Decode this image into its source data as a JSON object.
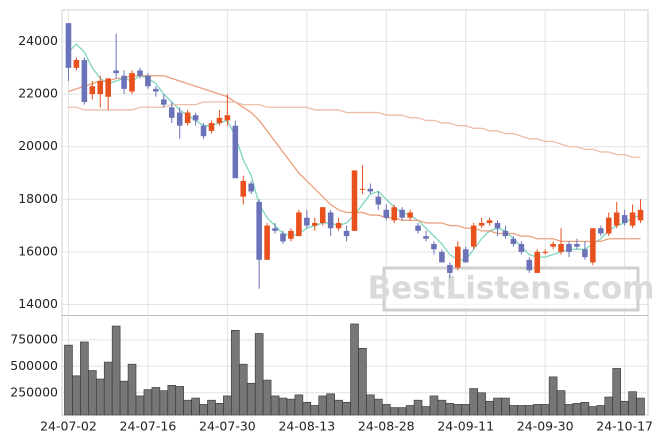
{
  "chart_data": [
    {
      "type": "candlestick",
      "open": [
        24700,
        23000,
        23300,
        22000,
        22000,
        21900,
        22900,
        22700,
        22100,
        22900,
        22700,
        22200,
        21800,
        21500,
        21300,
        20900,
        21200,
        20800,
        20600,
        20900,
        21000,
        20800,
        18100,
        18600,
        17900,
        15700,
        16900,
        16700,
        16500,
        16600,
        17300,
        17000,
        17100,
        17500,
        16900,
        16800,
        16800,
        18400,
        18400,
        18100,
        17600,
        17200,
        17600,
        17300,
        17000,
        16600,
        16300,
        16000,
        15500,
        15400,
        16100,
        16200,
        17000,
        17100,
        17100,
        16800,
        16500,
        16300,
        15700,
        15200,
        16000,
        16200,
        16000,
        16300,
        16300,
        16100,
        15600,
        16900,
        16700,
        17000,
        17400,
        17000,
        17200
      ],
      "high": [
        24700,
        23400,
        23400,
        22500,
        22700,
        22600,
        24300,
        22900,
        22900,
        23000,
        22800,
        22300,
        22000,
        21700,
        21500,
        21400,
        21300,
        20900,
        21000,
        21400,
        22000,
        21000,
        18900,
        18700,
        18000,
        17100,
        17100,
        16800,
        16900,
        17600,
        17600,
        17300,
        17700,
        17600,
        17300,
        17000,
        19100,
        19300,
        18600,
        18300,
        17800,
        17800,
        17700,
        17600,
        17100,
        16800,
        16400,
        16100,
        15600,
        16400,
        16200,
        17100,
        17300,
        17300,
        17200,
        17000,
        16600,
        16400,
        15800,
        16100,
        16100,
        16400,
        16900,
        16400,
        16500,
        16400,
        16900,
        17000,
        17500,
        17900,
        17600,
        17800,
        18000
      ],
      "low": [
        22500,
        22900,
        21600,
        21800,
        21500,
        21400,
        22600,
        22000,
        22000,
        22600,
        22200,
        21900,
        21500,
        20900,
        20300,
        20800,
        20800,
        20300,
        20500,
        20800,
        20800,
        18800,
        17800,
        18200,
        14600,
        15700,
        16700,
        16300,
        16400,
        16600,
        16900,
        16800,
        17000,
        16600,
        16800,
        16400,
        16800,
        18200,
        18200,
        17600,
        17200,
        17100,
        17200,
        17200,
        16700,
        16400,
        15900,
        15600,
        15000,
        15300,
        15600,
        16100,
        16900,
        17000,
        16600,
        16500,
        16200,
        15900,
        15200,
        15200,
        15900,
        16100,
        15900,
        15800,
        16100,
        15700,
        15500,
        16600,
        16600,
        16900,
        17000,
        16900,
        17100
      ],
      "close": [
        23000,
        23300,
        21700,
        22300,
        22500,
        22600,
        22800,
        22200,
        22800,
        22700,
        22300,
        22100,
        21600,
        21100,
        20800,
        21300,
        21000,
        20400,
        20900,
        21100,
        21200,
        18800,
        18700,
        18300,
        15700,
        17000,
        16800,
        16400,
        16800,
        17500,
        17000,
        17100,
        17700,
        16900,
        17100,
        16600,
        19100,
        18400,
        18300,
        17800,
        17300,
        17700,
        17300,
        17500,
        16800,
        16500,
        16100,
        15600,
        15200,
        16200,
        15600,
        17000,
        17100,
        17200,
        16900,
        16600,
        16300,
        16000,
        15300,
        16000,
        16000,
        16300,
        16300,
        16000,
        16200,
        15800,
        16900,
        16700,
        17300,
        17500,
        17100,
        17500,
        17600
      ],
      "up_color": "#e8501e",
      "down_color": "#6b72b8",
      "lines": [
        {
          "color": "#7fd6c0",
          "values": [
            23600,
            23900,
            23600,
            23000,
            22600,
            22400,
            22500,
            22600,
            22500,
            22700,
            22600,
            22400,
            22000,
            21700,
            21400,
            21200,
            21000,
            20800,
            20800,
            20900,
            21000,
            20400,
            19500,
            18900,
            17800,
            17300,
            17000,
            16700,
            16600,
            16700,
            16900,
            17000,
            17100,
            17100,
            17000,
            17100,
            17400,
            17800,
            18200,
            18300,
            18000,
            17700,
            17500,
            17400,
            17200,
            16900,
            16600,
            16300,
            15900,
            15700,
            15700,
            16100,
            16500,
            16800,
            16900,
            16800,
            16500,
            16200,
            15900,
            15800,
            15800,
            15900,
            16000,
            16100,
            16100,
            16100,
            16300,
            16500,
            16800,
            17000,
            17100,
            17300,
            17400
          ]
        },
        {
          "color": "#eaa07e",
          "values": [
            22100,
            22200,
            22300,
            22400,
            22500,
            22500,
            22600,
            22600,
            22700,
            22700,
            22700,
            22700,
            22700,
            22600,
            22500,
            22400,
            22300,
            22200,
            22100,
            22000,
            21900,
            21700,
            21500,
            21300,
            21000,
            20600,
            20200,
            19800,
            19400,
            19000,
            18700,
            18400,
            18100,
            17800,
            17600,
            17500,
            17500,
            17500,
            17400,
            17400,
            17300,
            17300,
            17200,
            17200,
            17200,
            17100,
            17100,
            17100,
            17000,
            17000,
            16900,
            16900,
            16800,
            16800,
            16700,
            16700,
            16700,
            16600,
            16600,
            16500,
            16500,
            16500,
            16400,
            16400,
            16400,
            16400,
            16400,
            16400,
            16500,
            16500,
            16500,
            16500,
            16500
          ]
        },
        {
          "color": "#ebbfa6",
          "values": [
            21500,
            21500,
            21400,
            21400,
            21400,
            21400,
            21400,
            21400,
            21400,
            21500,
            21500,
            21500,
            21500,
            21600,
            21600,
            21600,
            21600,
            21700,
            21700,
            21700,
            21700,
            21700,
            21600,
            21600,
            21600,
            21500,
            21500,
            21500,
            21500,
            21500,
            21500,
            21400,
            21400,
            21400,
            21400,
            21300,
            21300,
            21300,
            21300,
            21300,
            21200,
            21200,
            21200,
            21100,
            21100,
            21000,
            21000,
            20900,
            20900,
            20800,
            20800,
            20700,
            20700,
            20600,
            20600,
            20500,
            20500,
            20400,
            20300,
            20300,
            20200,
            20200,
            20100,
            20000,
            20000,
            19900,
            19900,
            19800,
            19800,
            19700,
            19700,
            19600,
            19600
          ]
        }
      ],
      "ylim": [
        13600,
        25200
      ],
      "yticks": [
        14000,
        16000,
        18000,
        20000,
        22000,
        24000
      ],
      "grid": true,
      "watermark": "BestListens.com"
    },
    {
      "type": "bar",
      "categories": [
        "24-07-02",
        null,
        null,
        null,
        null,
        null,
        null,
        null,
        null,
        null,
        "24-07-16",
        null,
        null,
        null,
        null,
        null,
        null,
        null,
        null,
        null,
        "24-07-30",
        null,
        null,
        null,
        null,
        null,
        null,
        null,
        null,
        null,
        "24-08-13",
        null,
        null,
        null,
        null,
        null,
        null,
        null,
        null,
        null,
        "24-08-28",
        null,
        null,
        null,
        null,
        null,
        null,
        null,
        null,
        null,
        "24-09-11",
        null,
        null,
        null,
        null,
        null,
        null,
        null,
        null,
        null,
        "24-09-30",
        null,
        null,
        null,
        null,
        null,
        null,
        null,
        null,
        null,
        "24-10-17",
        null,
        null
      ],
      "values": [
        700000,
        410000,
        730000,
        460000,
        380000,
        540000,
        880000,
        360000,
        520000,
        220000,
        280000,
        300000,
        270000,
        320000,
        310000,
        180000,
        200000,
        140000,
        180000,
        150000,
        220000,
        840000,
        520000,
        340000,
        810000,
        370000,
        220000,
        200000,
        190000,
        230000,
        160000,
        130000,
        220000,
        240000,
        180000,
        160000,
        900000,
        670000,
        230000,
        190000,
        140000,
        110000,
        110000,
        130000,
        180000,
        120000,
        220000,
        180000,
        150000,
        140000,
        140000,
        290000,
        250000,
        170000,
        200000,
        200000,
        130000,
        130000,
        130000,
        140000,
        140000,
        400000,
        270000,
        140000,
        150000,
        160000,
        120000,
        130000,
        210000,
        480000,
        170000,
        260000,
        200000
      ],
      "color": "#777777",
      "ylim": [
        40000,
        975000
      ],
      "yticks": [
        250000,
        500000,
        750000
      ],
      "grid": true
    }
  ]
}
